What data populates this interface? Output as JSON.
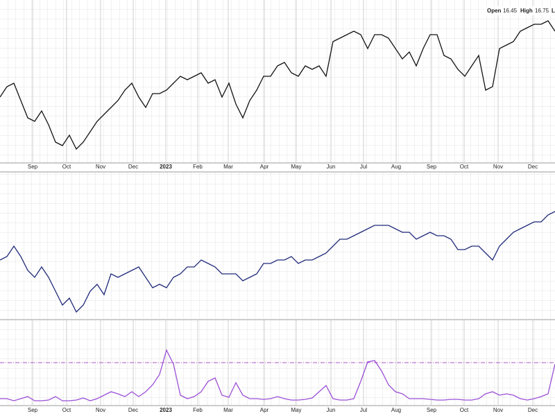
{
  "header": {
    "open_label": "Open",
    "open": 16.45,
    "high_label": "High",
    "high": 16.75,
    "low_label": "L"
  },
  "chart_data": [
    {
      "type": "line",
      "color": "#111111",
      "xlim": [
        0,
        80
      ],
      "ylim": [
        0,
        235
      ],
      "values": [
        95,
        110,
        115,
        90,
        65,
        60,
        75,
        55,
        30,
        25,
        40,
        20,
        30,
        45,
        60,
        70,
        80,
        90,
        105,
        115,
        95,
        80,
        100,
        100,
        105,
        115,
        125,
        120,
        125,
        130,
        115,
        120,
        95,
        115,
        85,
        65,
        90,
        105,
        125,
        125,
        140,
        145,
        130,
        125,
        140,
        135,
        140,
        125,
        175,
        180,
        185,
        190,
        185,
        165,
        185,
        185,
        180,
        165,
        150,
        160,
        140,
        165,
        185,
        185,
        155,
        150,
        135,
        125,
        140,
        155,
        105,
        110,
        165,
        170,
        175,
        190,
        195,
        200,
        200,
        205,
        190
      ],
      "xticks": [
        {
          "value": 4.7,
          "label": "Sep"
        },
        {
          "value": 9.6,
          "label": "Oct"
        },
        {
          "value": 14.5,
          "label": "Nov"
        },
        {
          "value": 19.2,
          "label": "Dec"
        },
        {
          "value": 23.9,
          "label": "2023"
        },
        {
          "value": 28.5,
          "label": "Feb"
        },
        {
          "value": 32.9,
          "label": "Mar"
        },
        {
          "value": 38.1,
          "label": "Apr"
        },
        {
          "value": 42.7,
          "label": "May"
        },
        {
          "value": 47.7,
          "label": "Jun"
        },
        {
          "value": 52.4,
          "label": "Jul"
        },
        {
          "value": 57.1,
          "label": "Aug"
        },
        {
          "value": 62.2,
          "label": "Sep"
        },
        {
          "value": 66.9,
          "label": "Oct"
        },
        {
          "value": 71.8,
          "label": "Nov"
        },
        {
          "value": 76.8,
          "label": "Dec"
        }
      ]
    },
    {
      "type": "line",
      "color": "#1f2a7a",
      "xlim": [
        0,
        80
      ],
      "ylim": [
        0,
        212
      ],
      "values": [
        85,
        90,
        105,
        90,
        70,
        60,
        75,
        60,
        40,
        20,
        30,
        10,
        20,
        40,
        50,
        35,
        65,
        60,
        65,
        70,
        75,
        60,
        45,
        50,
        45,
        60,
        65,
        75,
        75,
        85,
        80,
        75,
        65,
        65,
        65,
        55,
        60,
        65,
        80,
        80,
        85,
        85,
        90,
        80,
        85,
        85,
        90,
        95,
        105,
        115,
        115,
        120,
        125,
        130,
        135,
        135,
        135,
        130,
        125,
        125,
        115,
        120,
        125,
        120,
        120,
        115,
        100,
        100,
        105,
        105,
        95,
        85,
        105,
        115,
        125,
        130,
        135,
        140,
        140,
        150,
        155
      ]
    },
    {
      "type": "line",
      "color": "#9b4fd6",
      "xlim": [
        0,
        80
      ],
      "ylim": [
        0,
        123
      ],
      "reference_line": 62,
      "reference_color": "#b050c8",
      "values": [
        10,
        10,
        7,
        10,
        13,
        7,
        7,
        8,
        13,
        7,
        7,
        8,
        11,
        7,
        10,
        15,
        20,
        17,
        13,
        20,
        13,
        20,
        30,
        45,
        80,
        60,
        15,
        10,
        13,
        20,
        35,
        40,
        15,
        12,
        33,
        15,
        10,
        10,
        9,
        10,
        13,
        10,
        8,
        8,
        9,
        11,
        20,
        29,
        10,
        8,
        8,
        10,
        35,
        63,
        65,
        50,
        30,
        20,
        17,
        10,
        10,
        10,
        9,
        8,
        8,
        9,
        9,
        8,
        8,
        10,
        17,
        20,
        15,
        17,
        15,
        10,
        8,
        10,
        13,
        17,
        60
      ],
      "xticks": [
        {
          "value": 4.7,
          "label": "Sep"
        },
        {
          "value": 9.6,
          "label": "Oct"
        },
        {
          "value": 14.5,
          "label": "Nov"
        },
        {
          "value": 19.2,
          "label": "Dec"
        },
        {
          "value": 23.9,
          "label": "2023"
        },
        {
          "value": 28.5,
          "label": "Feb"
        },
        {
          "value": 32.9,
          "label": "Mar"
        },
        {
          "value": 38.1,
          "label": "Apr"
        },
        {
          "value": 42.7,
          "label": "May"
        },
        {
          "value": 47.7,
          "label": "Jun"
        },
        {
          "value": 52.4,
          "label": "Jul"
        },
        {
          "value": 57.1,
          "label": "Aug"
        },
        {
          "value": 62.2,
          "label": "Sep"
        },
        {
          "value": 66.9,
          "label": "Oct"
        },
        {
          "value": 71.8,
          "label": "Nov"
        },
        {
          "value": 76.8,
          "label": "Dec"
        }
      ]
    }
  ]
}
